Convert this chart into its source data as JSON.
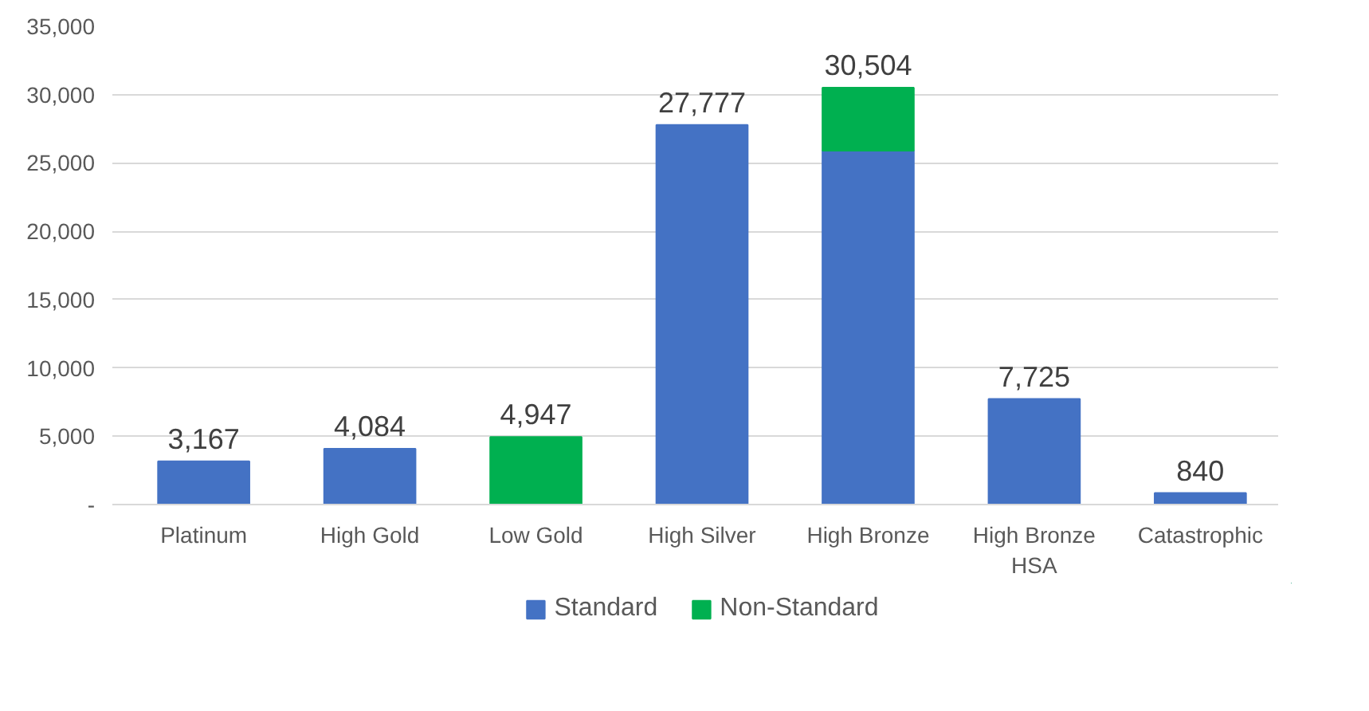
{
  "chart_data": {
    "type": "bar",
    "stacked": true,
    "categories": [
      "Platinum",
      "High Gold",
      "Low Gold",
      "High Silver",
      "High Bronze",
      "High Bronze HSA",
      "Catastrophic"
    ],
    "series": [
      {
        "name": "Standard",
        "color": "#4472c4",
        "values": [
          3167,
          4084,
          null,
          27777,
          25900,
          7725,
          840
        ]
      },
      {
        "name": "Non-Standard",
        "color": "#00b050",
        "values": [
          null,
          null,
          4947,
          null,
          4604,
          null,
          null
        ]
      }
    ],
    "totals": [
      "3,167",
      "4,084",
      "4,947",
      "27,777",
      "30,504",
      "7,725",
      "840"
    ],
    "ylim": [
      0,
      35000
    ],
    "yticks": [
      {
        "value": 0,
        "label": "-"
      },
      {
        "value": 5000,
        "label": "5,000"
      },
      {
        "value": 10000,
        "label": "10,000"
      },
      {
        "value": 15000,
        "label": "15,000"
      },
      {
        "value": 20000,
        "label": "20,000"
      },
      {
        "value": 25000,
        "label": "25,000"
      },
      {
        "value": 30000,
        "label": "30,000"
      },
      {
        "value": 35000,
        "label": "35,000"
      }
    ],
    "grid": "y",
    "legend": "bottom"
  }
}
